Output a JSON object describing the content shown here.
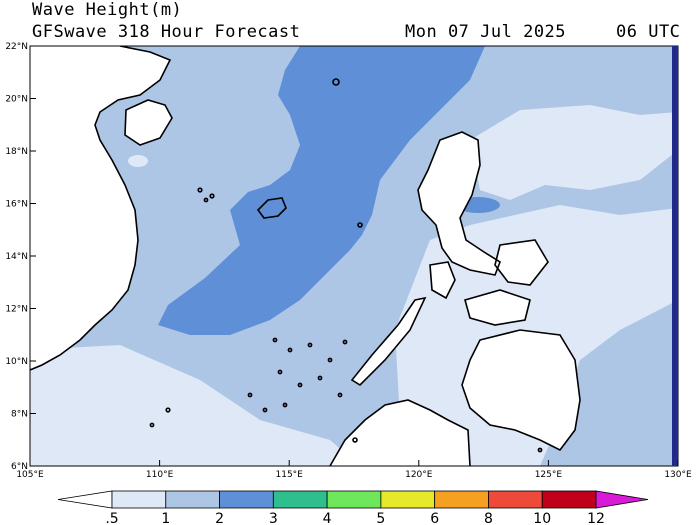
{
  "header": {
    "product": "Wave Height(m)",
    "forecast": "GFSwave 318 Hour Forecast",
    "date": "Mon 07 Jul 2025",
    "time": "06 UTC"
  },
  "map": {
    "lon_range": [
      105,
      130
    ],
    "lat_range": [
      6,
      22
    ],
    "lon_ticks": [
      "105°E",
      "110°E",
      "115°E",
      "120°E",
      "125°E",
      "130°E"
    ],
    "lat_ticks": [
      "6°N",
      "8°N",
      "10°N",
      "12°N",
      "14°N",
      "16°N",
      "18°N",
      "20°N",
      "22°N"
    ],
    "colors": {
      "land": "#ffffff",
      "band_0_5_1": "#dfe8f6",
      "band_1_2": "#aec6e6",
      "band_2_3": "#5f8fd6",
      "coast": "#000000",
      "frame_edge": "#1f2a8a"
    }
  },
  "colorbar": {
    "labels": [
      ".5",
      "1",
      "2",
      "3",
      "4",
      "5",
      "6",
      "8",
      "10",
      "12"
    ],
    "colors": [
      "#ffffff",
      "#dfe8f6",
      "#aec6e6",
      "#5f8fd6",
      "#2fbf8f",
      "#6ee85a",
      "#e8e82a",
      "#f5a020",
      "#ee4a3a",
      "#c0001a",
      "#d91ad9"
    ]
  }
}
